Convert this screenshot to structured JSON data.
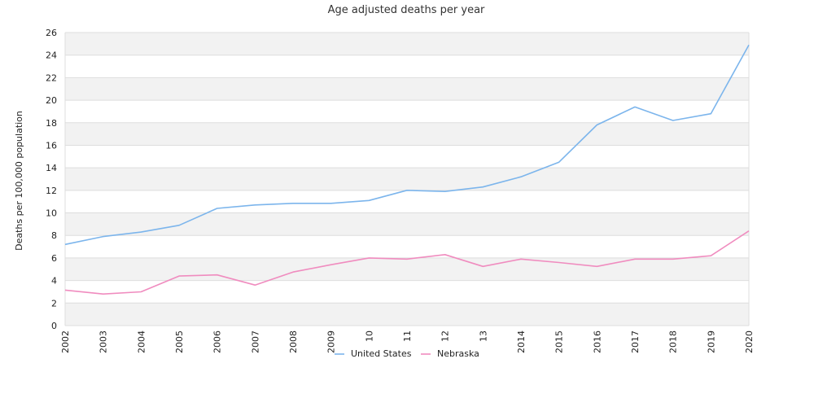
{
  "chart_data": {
    "type": "line",
    "title": "Age adjusted deaths per year",
    "xlabel": "",
    "ylabel": "Deaths per 100,000 population",
    "ylim": [
      0,
      26
    ],
    "yticks": [
      "0",
      "2",
      "4",
      "6",
      "8",
      "10",
      "12",
      "14",
      "16",
      "18",
      "20",
      "22",
      "24",
      "26"
    ],
    "categories": [
      "2002",
      "2003",
      "2004",
      "2005",
      "2006",
      "2007",
      "2008",
      "2009",
      "2010",
      "2011",
      "2012",
      "2013",
      "2014",
      "2015",
      "2016",
      "2017",
      "2018",
      "2019",
      "2020"
    ],
    "x_tick_labels": [
      "2002",
      "2003",
      "2004",
      "2005",
      "2006",
      "2007",
      "2008",
      "2009",
      "10",
      "11",
      "12",
      "13",
      "2014",
      "2015",
      "2016",
      "2017",
      "2018",
      "2019",
      "2020"
    ],
    "grid": "horizontal alternating bands",
    "legend_position": "bottom",
    "series": [
      {
        "name": "United States",
        "color": "#7cb5ec",
        "values": [
          7.2,
          7.9,
          8.3,
          8.9,
          10.4,
          10.7,
          10.85,
          10.85,
          11.1,
          12.0,
          11.9,
          12.3,
          13.2,
          14.5,
          17.8,
          19.4,
          18.2,
          18.8,
          24.9
        ]
      },
      {
        "name": "Nebraska",
        "color": "#f08cbf",
        "values": [
          3.15,
          2.8,
          3.0,
          4.4,
          4.5,
          3.6,
          4.75,
          5.4,
          6.0,
          5.9,
          6.3,
          5.25,
          5.9,
          5.6,
          5.25,
          5.9,
          5.9,
          6.2,
          8.4
        ]
      }
    ]
  }
}
